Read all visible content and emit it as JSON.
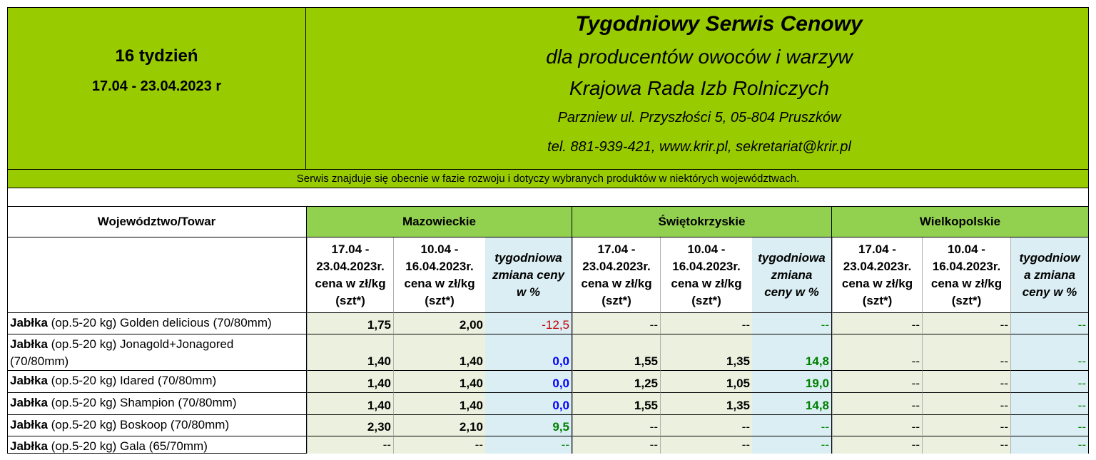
{
  "header": {
    "week": "16 tydzień",
    "date_range": "17.04 - 23.04.2023 r",
    "title": "Tygodniowy Serwis Cenowy",
    "subtitle": "dla producentów owoców i warzyw",
    "organization": "Krajowa Rada Izb Rolniczych",
    "address": "Parzniew ul. Przyszłości 5, 05-804 Pruszków",
    "contact": "tel. 881-939-421, www.krir.pl, sekretariat@krir.pl",
    "note": "Serwis znajduje się obecnie w  fazie rozwoju i dotyczy wybranych produktów w niektórych województwach."
  },
  "table": {
    "corner_label": "Województwo/Towar",
    "regions": [
      "Mazowieckie",
      "Świętokrzyskie",
      "Wielkopolskie"
    ],
    "subheaders": {
      "current": [
        "17.04 -",
        "23.04.2023r.",
        "cena w zł/kg",
        "(szt*)"
      ],
      "previous": [
        "10.04 -",
        "16.04.2023r.",
        "cena w zł/kg",
        "(szt*)"
      ],
      "change_a": [
        "tygodniowa",
        "zmiana ceny",
        "w %"
      ],
      "change_b": [
        "tygodniowa",
        "zmiana",
        "ceny w %"
      ],
      "change_c": [
        "tygodniow",
        "a zmiana",
        "ceny w %"
      ]
    },
    "rows": [
      {
        "bold": "Jabłka",
        "rest": " (op.5-20 kg)  Golden delicious  (70/80mm)",
        "values": [
          "1,75",
          "2,00",
          "-12,5",
          "--",
          "--",
          "--",
          "--",
          "--",
          "--"
        ]
      },
      {
        "bold": "Jabłka",
        "rest": " (op.5-20 kg) Jonagold+Jonagored",
        "rest2": "(70/80mm)",
        "values": [
          "1,40",
          "1,40",
          "0,0",
          "1,55",
          "1,35",
          "14,8",
          "--",
          "--",
          "--"
        ]
      },
      {
        "bold": "Jabłka",
        "rest": " (op.5-20 kg)  Idared (70/80mm)",
        "values": [
          "1,40",
          "1,40",
          "0,0",
          "1,25",
          "1,05",
          "19,0",
          "--",
          "--",
          "--"
        ]
      },
      {
        "bold": "Jabłka",
        "rest": " (op.5-20 kg) Shampion (70/80mm)",
        "values": [
          "1,40",
          "1,40",
          "0,0",
          "1,55",
          "1,35",
          "14,8",
          "--",
          "--",
          "--"
        ]
      },
      {
        "bold": "Jabłka",
        "rest": " (op.5-20 kg) Boskoop (70/80mm)",
        "values": [
          "2,30",
          "2,10",
          "9,5",
          "--",
          "--",
          "--",
          "--",
          "--",
          "--"
        ]
      },
      {
        "bold": "Jabłka",
        "rest": " (op.5-20 kg) Gala (65/70mm)",
        "values": [
          "--",
          "--",
          "--",
          "--",
          "--",
          "--",
          "--",
          "--",
          "--"
        ]
      }
    ]
  },
  "colors": {
    "header_green": "#99cc00",
    "region_green": "#92d050",
    "price_cell": "#ebf1de",
    "change_cell": "#daeef3",
    "negative": "#c00000",
    "zero": "#0000ff",
    "positive": "#008000"
  }
}
